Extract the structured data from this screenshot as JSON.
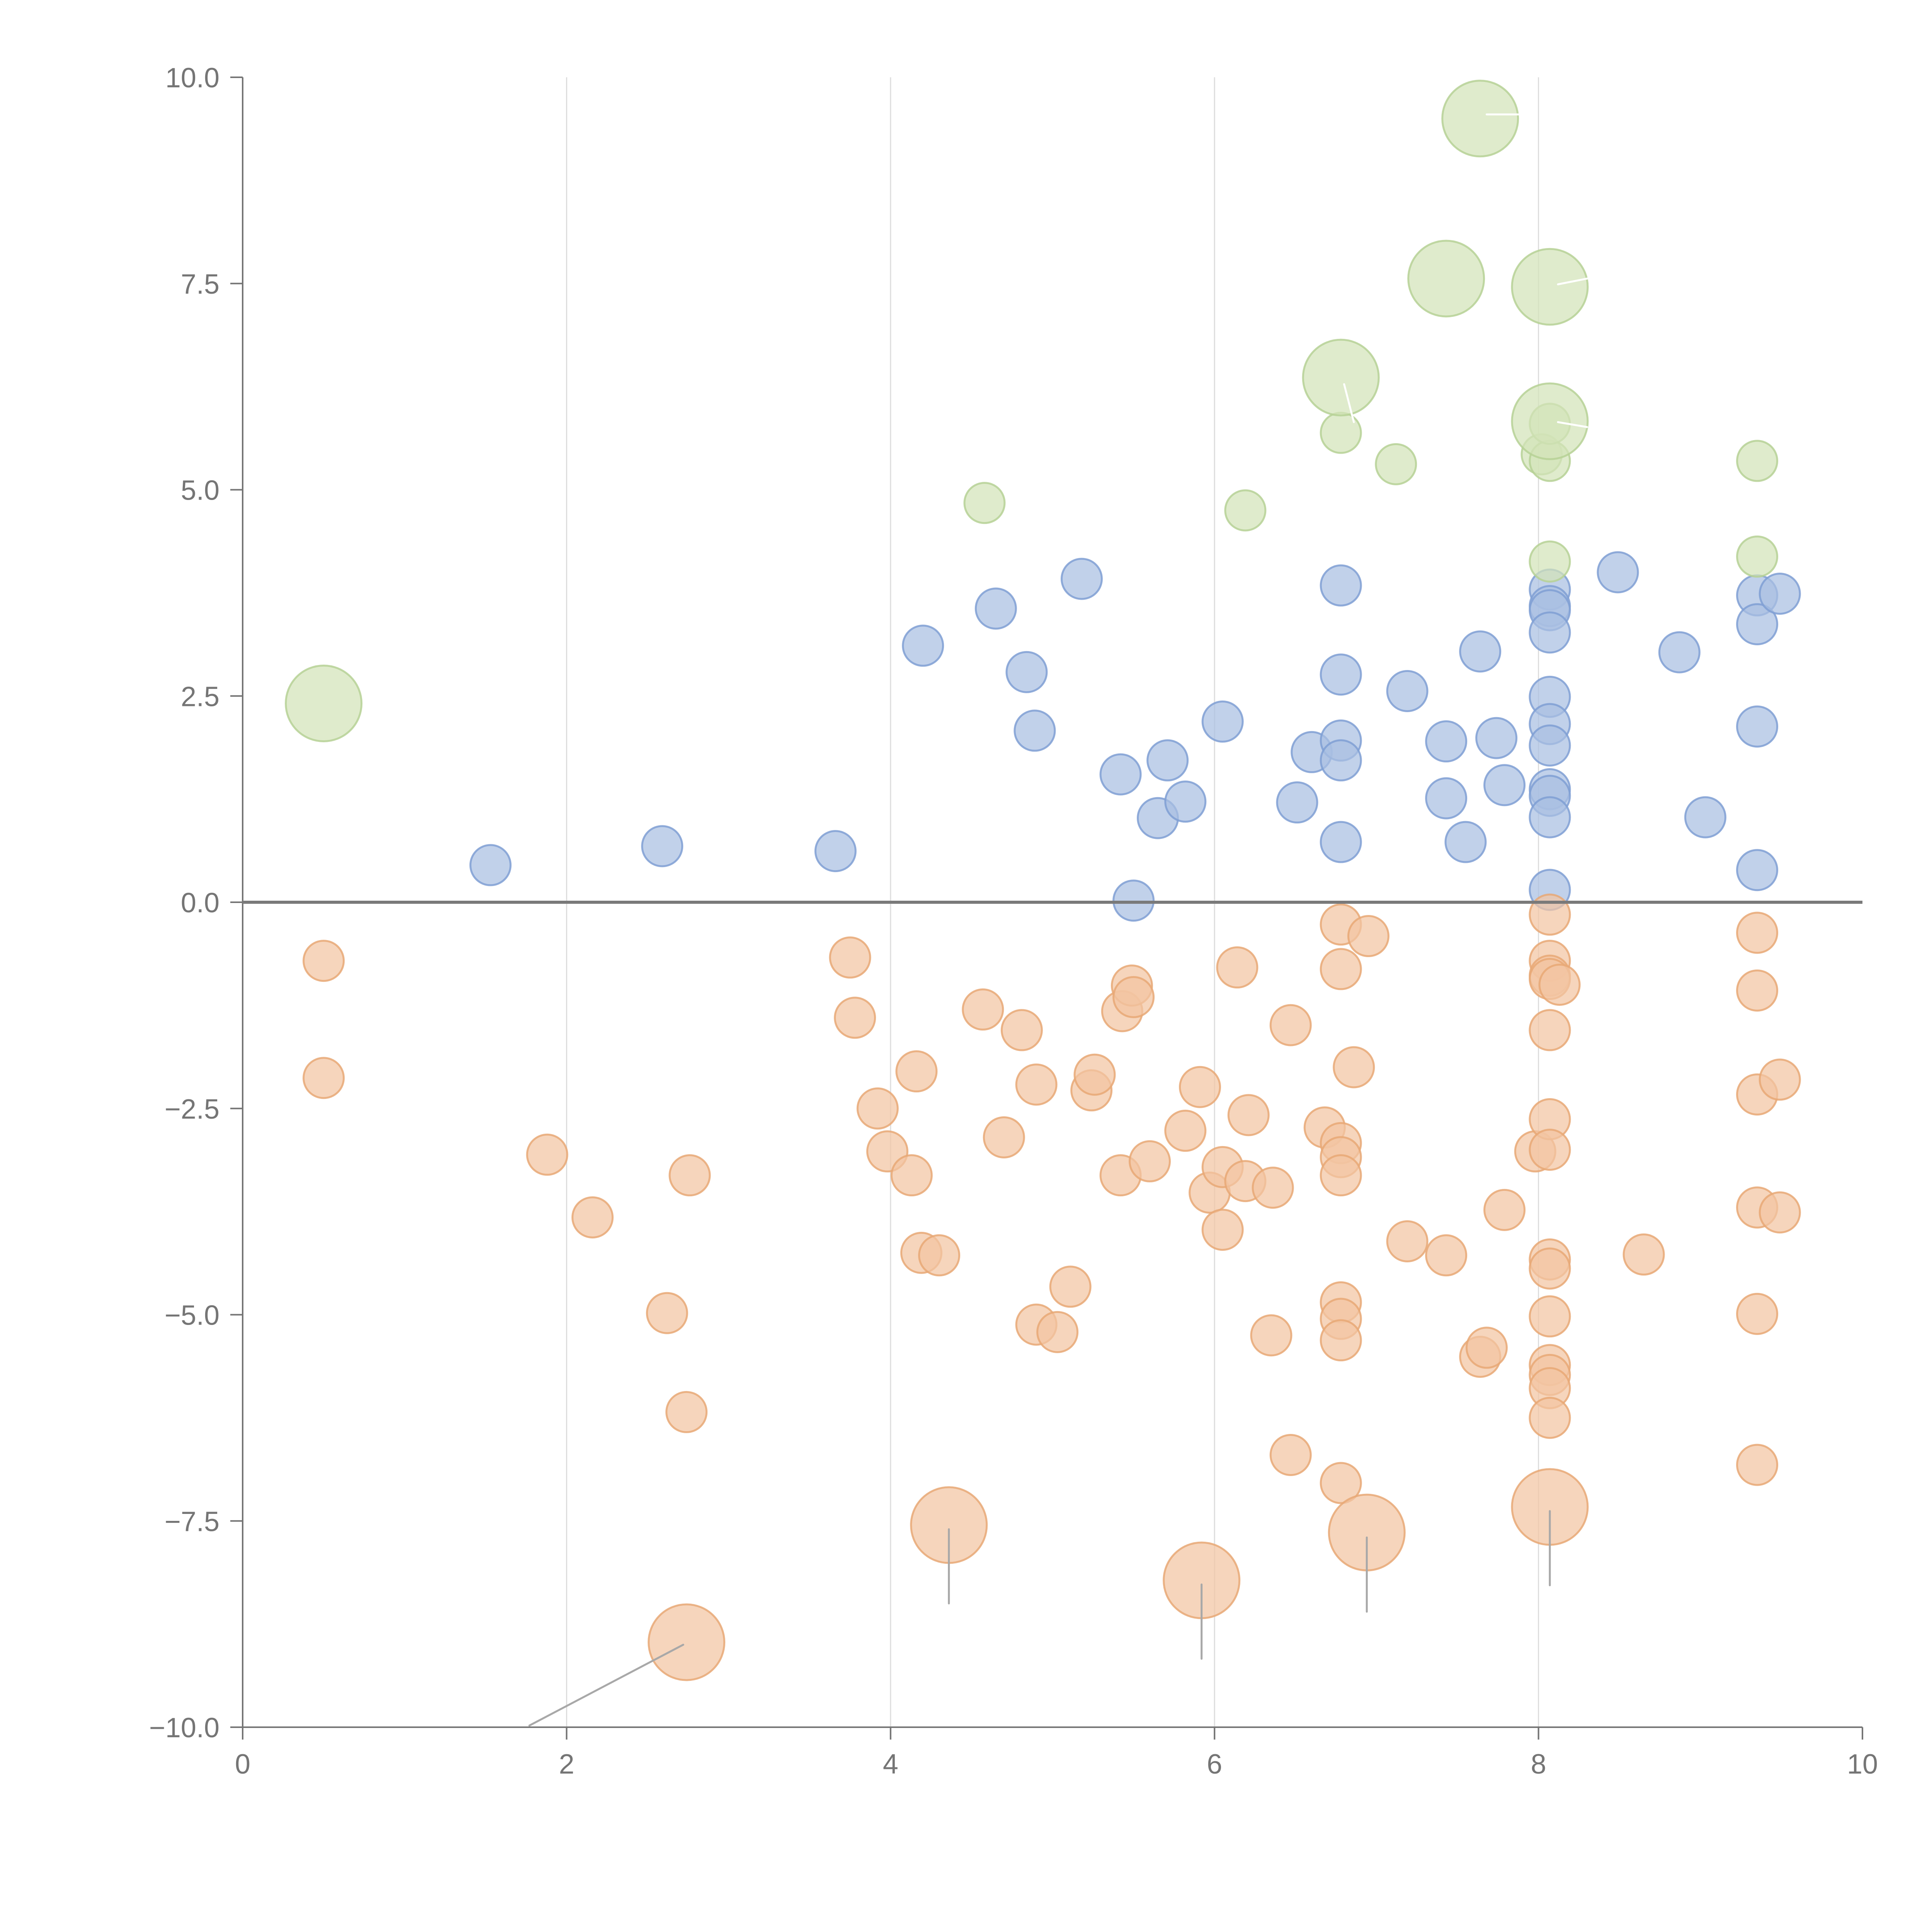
{
  "chart_data": {
    "type": "scatter",
    "title": "",
    "xlabel": "",
    "ylabel": "",
    "xlim": [
      0,
      10
    ],
    "ylim": [
      -10,
      10
    ],
    "x_ticks": [
      0,
      2,
      4,
      6,
      8,
      10
    ],
    "x_tick_labels": [
      "0",
      "2",
      "4",
      "6",
      "8",
      "10"
    ],
    "y_ticks": [
      10,
      7.5,
      5,
      2.5,
      0,
      -2.5,
      -5,
      -7.5,
      -10
    ],
    "y_tick_labels": [
      "10.0",
      "7.5",
      "5.0",
      "2.5",
      "0.0",
      "−2.5",
      "−5.0",
      "−7.5",
      "−10.0"
    ],
    "vertical_grid": [
      2,
      4,
      6,
      8
    ],
    "zero_line": 0,
    "size_legend": "small = 1, large = 2",
    "colors": {
      "blue_fill": "#a9bfe2",
      "blue_stroke": "#7f9fd4",
      "orange_fill": "#f2c5a2",
      "orange_stroke": "#e8a876",
      "green_fill": "#d3e3b8",
      "green_stroke": "#b6d195",
      "axis": "#757575",
      "grid": "#dddddd",
      "leader": "#a8a8a8"
    },
    "series": [
      {
        "name": "blue",
        "points": [
          [
            1.53,
            0.45,
            1
          ],
          [
            2.59,
            0.68,
            1
          ],
          [
            3.66,
            0.62,
            1
          ],
          [
            4.2,
            3.11,
            1
          ],
          [
            4.65,
            3.56,
            1
          ],
          [
            4.84,
            2.79,
            1
          ],
          [
            4.89,
            2.08,
            1
          ],
          [
            5.18,
            3.92,
            1
          ],
          [
            5.42,
            1.55,
            1
          ],
          [
            5.5,
            0.02,
            1
          ],
          [
            5.65,
            1.02,
            1
          ],
          [
            5.71,
            1.72,
            1
          ],
          [
            5.82,
            1.22,
            1
          ],
          [
            6.05,
            2.19,
            1
          ],
          [
            6.51,
            1.21,
            1
          ],
          [
            6.6,
            1.82,
            1
          ],
          [
            6.78,
            3.84,
            1
          ],
          [
            6.78,
            2.76,
            1
          ],
          [
            6.78,
            1.96,
            1
          ],
          [
            6.78,
            1.72,
            1
          ],
          [
            6.78,
            0.73,
            1
          ],
          [
            7.19,
            2.56,
            1
          ],
          [
            7.43,
            1.95,
            1
          ],
          [
            7.43,
            1.26,
            1
          ],
          [
            7.55,
            0.73,
            1
          ],
          [
            7.64,
            3.04,
            1
          ],
          [
            7.74,
            1.99,
            1
          ],
          [
            7.79,
            1.42,
            1
          ],
          [
            8.07,
            3.79,
            1
          ],
          [
            8.07,
            3.59,
            1
          ],
          [
            8.07,
            3.54,
            1
          ],
          [
            8.07,
            3.27,
            1
          ],
          [
            8.07,
            2.49,
            1
          ],
          [
            8.07,
            2.16,
            1
          ],
          [
            8.07,
            1.9,
            1
          ],
          [
            8.07,
            1.37,
            1
          ],
          [
            8.07,
            1.29,
            1
          ],
          [
            8.07,
            1.03,
            1
          ],
          [
            8.07,
            0.15,
            1
          ],
          [
            8.49,
            4.0,
            1
          ],
          [
            8.87,
            3.03,
            1
          ],
          [
            9.03,
            1.03,
            1
          ],
          [
            9.35,
            3.72,
            1
          ],
          [
            9.35,
            3.37,
            1
          ],
          [
            9.35,
            2.13,
            1
          ],
          [
            9.35,
            0.39,
            1
          ],
          [
            9.49,
            3.74,
            1
          ]
        ]
      },
      {
        "name": "orange",
        "points": [
          [
            0.5,
            -0.71,
            1
          ],
          [
            0.5,
            -2.13,
            1
          ],
          [
            1.88,
            -3.06,
            1
          ],
          [
            2.16,
            -3.82,
            1
          ],
          [
            2.62,
            -4.98,
            1
          ],
          [
            2.74,
            -6.18,
            1
          ],
          [
            2.76,
            -3.31,
            1
          ],
          [
            3.75,
            -0.67,
            1
          ],
          [
            3.78,
            -1.4,
            1
          ],
          [
            3.92,
            -2.5,
            1
          ],
          [
            3.98,
            -3.02,
            1
          ],
          [
            4.13,
            -3.31,
            1
          ],
          [
            4.16,
            -2.05,
            1
          ],
          [
            4.19,
            -4.25,
            1
          ],
          [
            4.3,
            -4.28,
            1
          ],
          [
            4.57,
            -1.3,
            1
          ],
          [
            4.7,
            -2.85,
            1
          ],
          [
            4.81,
            -1.55,
            1
          ],
          [
            4.9,
            -2.21,
            1
          ],
          [
            4.9,
            -5.12,
            1
          ],
          [
            5.03,
            -5.21,
            1
          ],
          [
            5.11,
            -4.66,
            1
          ],
          [
            5.24,
            -2.28,
            1
          ],
          [
            5.26,
            -2.09,
            1
          ],
          [
            5.42,
            -3.31,
            1
          ],
          [
            5.43,
            -1.32,
            1
          ],
          [
            5.49,
            -1.01,
            1
          ],
          [
            5.5,
            -1.15,
            1
          ],
          [
            5.6,
            -3.14,
            1
          ],
          [
            5.82,
            -2.77,
            1
          ],
          [
            5.91,
            -2.24,
            1
          ],
          [
            5.97,
            -3.52,
            1
          ],
          [
            6.05,
            -3.21,
            1
          ],
          [
            6.05,
            -3.97,
            1
          ],
          [
            6.14,
            -0.79,
            1
          ],
          [
            6.19,
            -3.38,
            1
          ],
          [
            6.21,
            -2.58,
            1
          ],
          [
            6.35,
            -5.25,
            1
          ],
          [
            6.36,
            -3.46,
            1
          ],
          [
            6.47,
            -1.49,
            1
          ],
          [
            6.47,
            -6.7,
            1
          ],
          [
            6.68,
            -2.73,
            1
          ],
          [
            6.78,
            -0.27,
            1
          ],
          [
            6.78,
            -0.81,
            1
          ],
          [
            6.78,
            -2.92,
            1
          ],
          [
            6.78,
            -3.09,
            1
          ],
          [
            6.78,
            -3.31,
            1
          ],
          [
            6.78,
            -4.85,
            1
          ],
          [
            6.78,
            -5.05,
            1
          ],
          [
            6.78,
            -5.31,
            1
          ],
          [
            6.78,
            -7.04,
            1
          ],
          [
            6.86,
            -2.0,
            1
          ],
          [
            6.95,
            -0.41,
            1
          ],
          [
            7.19,
            -4.11,
            1
          ],
          [
            7.43,
            -4.28,
            1
          ],
          [
            7.64,
            -5.51,
            1
          ],
          [
            7.68,
            -5.4,
            1
          ],
          [
            7.79,
            -3.73,
            1
          ],
          [
            7.98,
            -3.02,
            1
          ],
          [
            8.07,
            -0.15,
            1
          ],
          [
            8.07,
            -0.71,
            1
          ],
          [
            8.07,
            -0.89,
            1
          ],
          [
            8.07,
            -0.93,
            1
          ],
          [
            8.07,
            -1.55,
            1
          ],
          [
            8.07,
            -2.63,
            1
          ],
          [
            8.07,
            -3.0,
            1
          ],
          [
            8.07,
            -4.33,
            1
          ],
          [
            8.07,
            -4.44,
            1
          ],
          [
            8.07,
            -5.02,
            1
          ],
          [
            8.07,
            -5.61,
            1
          ],
          [
            8.07,
            -5.73,
            1
          ],
          [
            8.07,
            -5.89,
            1
          ],
          [
            8.07,
            -6.25,
            1
          ],
          [
            8.13,
            -1.0,
            1
          ],
          [
            8.65,
            -4.27,
            1
          ],
          [
            9.35,
            -0.37,
            1
          ],
          [
            9.35,
            -1.07,
            1
          ],
          [
            9.35,
            -2.33,
            1
          ],
          [
            9.35,
            -3.7,
            1
          ],
          [
            9.35,
            -4.99,
            1
          ],
          [
            9.35,
            -6.82,
            1
          ],
          [
            9.49,
            -2.15,
            1
          ],
          [
            9.49,
            -3.76,
            1
          ],
          [
            2.74,
            -8.97,
            2
          ],
          [
            4.36,
            -7.55,
            2
          ],
          [
            5.92,
            -8.22,
            2
          ],
          [
            6.94,
            -7.64,
            2
          ],
          [
            8.07,
            -7.33,
            2
          ]
        ]
      },
      {
        "name": "green",
        "points": [
          [
            0.5,
            2.41,
            2
          ],
          [
            4.58,
            4.84,
            1
          ],
          [
            6.19,
            4.75,
            1
          ],
          [
            6.78,
            5.69,
            1
          ],
          [
            7.12,
            5.31,
            1
          ],
          [
            8.02,
            5.43,
            1
          ],
          [
            8.07,
            5.35,
            1
          ],
          [
            8.07,
            5.8,
            1
          ],
          [
            8.07,
            4.13,
            1
          ],
          [
            9.35,
            5.35,
            1
          ],
          [
            9.35,
            4.19,
            1
          ],
          [
            6.78,
            6.36,
            2
          ],
          [
            7.43,
            7.56,
            2
          ],
          [
            7.64,
            9.5,
            2
          ],
          [
            8.07,
            7.46,
            2
          ],
          [
            8.07,
            5.83,
            2
          ]
        ]
      }
    ],
    "leader_lines": [
      {
        "color": "gray",
        "from": [
          2.72,
          -9.0
        ],
        "to": [
          1.77,
          -9.98
        ]
      },
      {
        "color": "gray",
        "from": [
          4.36,
          -7.6
        ],
        "to": [
          4.36,
          -8.5
        ]
      },
      {
        "color": "gray",
        "from": [
          5.92,
          -8.27
        ],
        "to": [
          5.92,
          -9.17
        ]
      },
      {
        "color": "gray",
        "from": [
          6.94,
          -7.7
        ],
        "to": [
          6.94,
          -8.6
        ]
      },
      {
        "color": "gray",
        "from": [
          8.07,
          -7.38
        ],
        "to": [
          8.07,
          -8.28
        ]
      },
      {
        "color": "white",
        "from": [
          7.68,
          9.55
        ],
        "to": [
          7.88,
          9.55
        ]
      },
      {
        "color": "white",
        "from": [
          8.12,
          7.49
        ],
        "to": [
          8.3,
          7.56
        ]
      },
      {
        "color": "white",
        "from": [
          8.12,
          5.82
        ],
        "to": [
          8.3,
          5.76
        ]
      },
      {
        "color": "white",
        "from": [
          6.8,
          6.28
        ],
        "to": [
          6.86,
          5.82
        ]
      }
    ]
  }
}
